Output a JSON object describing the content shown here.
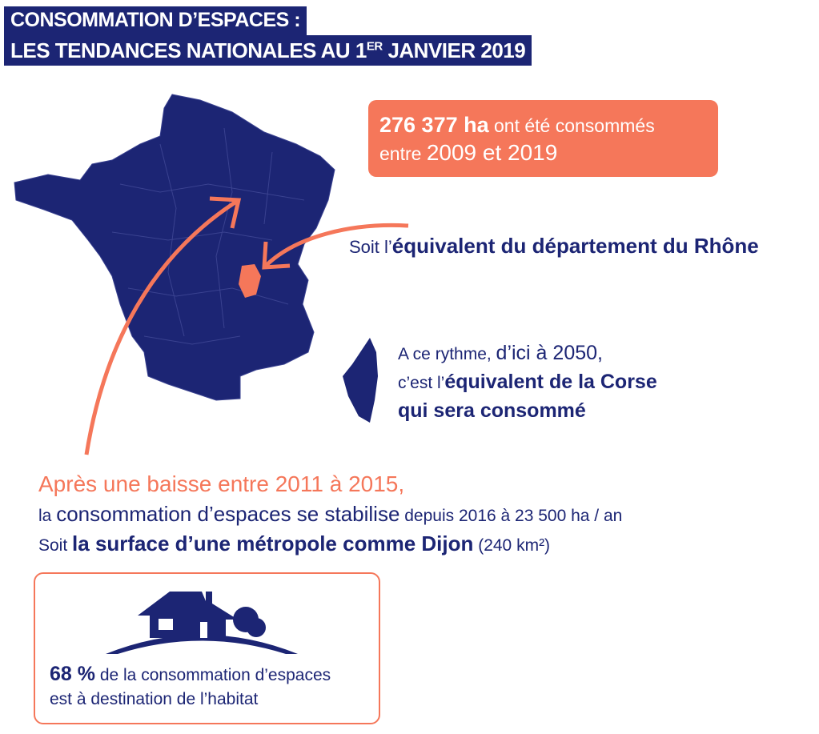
{
  "header": {
    "line1": "CONSOMMATION D’ESPACES :",
    "line2_prefix": "LES TENDANCES NATIONALES AU 1",
    "line2_sup": "ER",
    "line2_suffix": " JANVIER 2019"
  },
  "stat": {
    "value": "276 377 ha",
    "text1": " ont été consommés",
    "text2": "entre ",
    "years": "2009 et 2019"
  },
  "rhone": {
    "prefix": "Soit l’",
    "bold": "équivalent du département du Rhône"
  },
  "corse": {
    "l1a": "A ce rythme, ",
    "l1b": "d’ici à 2050,",
    "l2a": "c’est l’",
    "l2b": "équivalent de la Corse",
    "l3": "qui sera consommé"
  },
  "trend": {
    "l1": "Après une baisse entre 2011 à 2015,",
    "l2a": "la ",
    "l2b": "consommation d’espaces se stabilise",
    "l2c": " depuis 2016 à 23 500 ha / an",
    "l3a": "Soit ",
    "l3b": "la surface d’une métropole comme Dijon",
    "l3c": " (240 km²)"
  },
  "habitat": {
    "value": "68 %",
    "text1": " de la consommation d’espaces",
    "text2": "est à destination de l’habitat"
  },
  "colors": {
    "navy": "#1c2574",
    "orange": "#f5775a"
  }
}
